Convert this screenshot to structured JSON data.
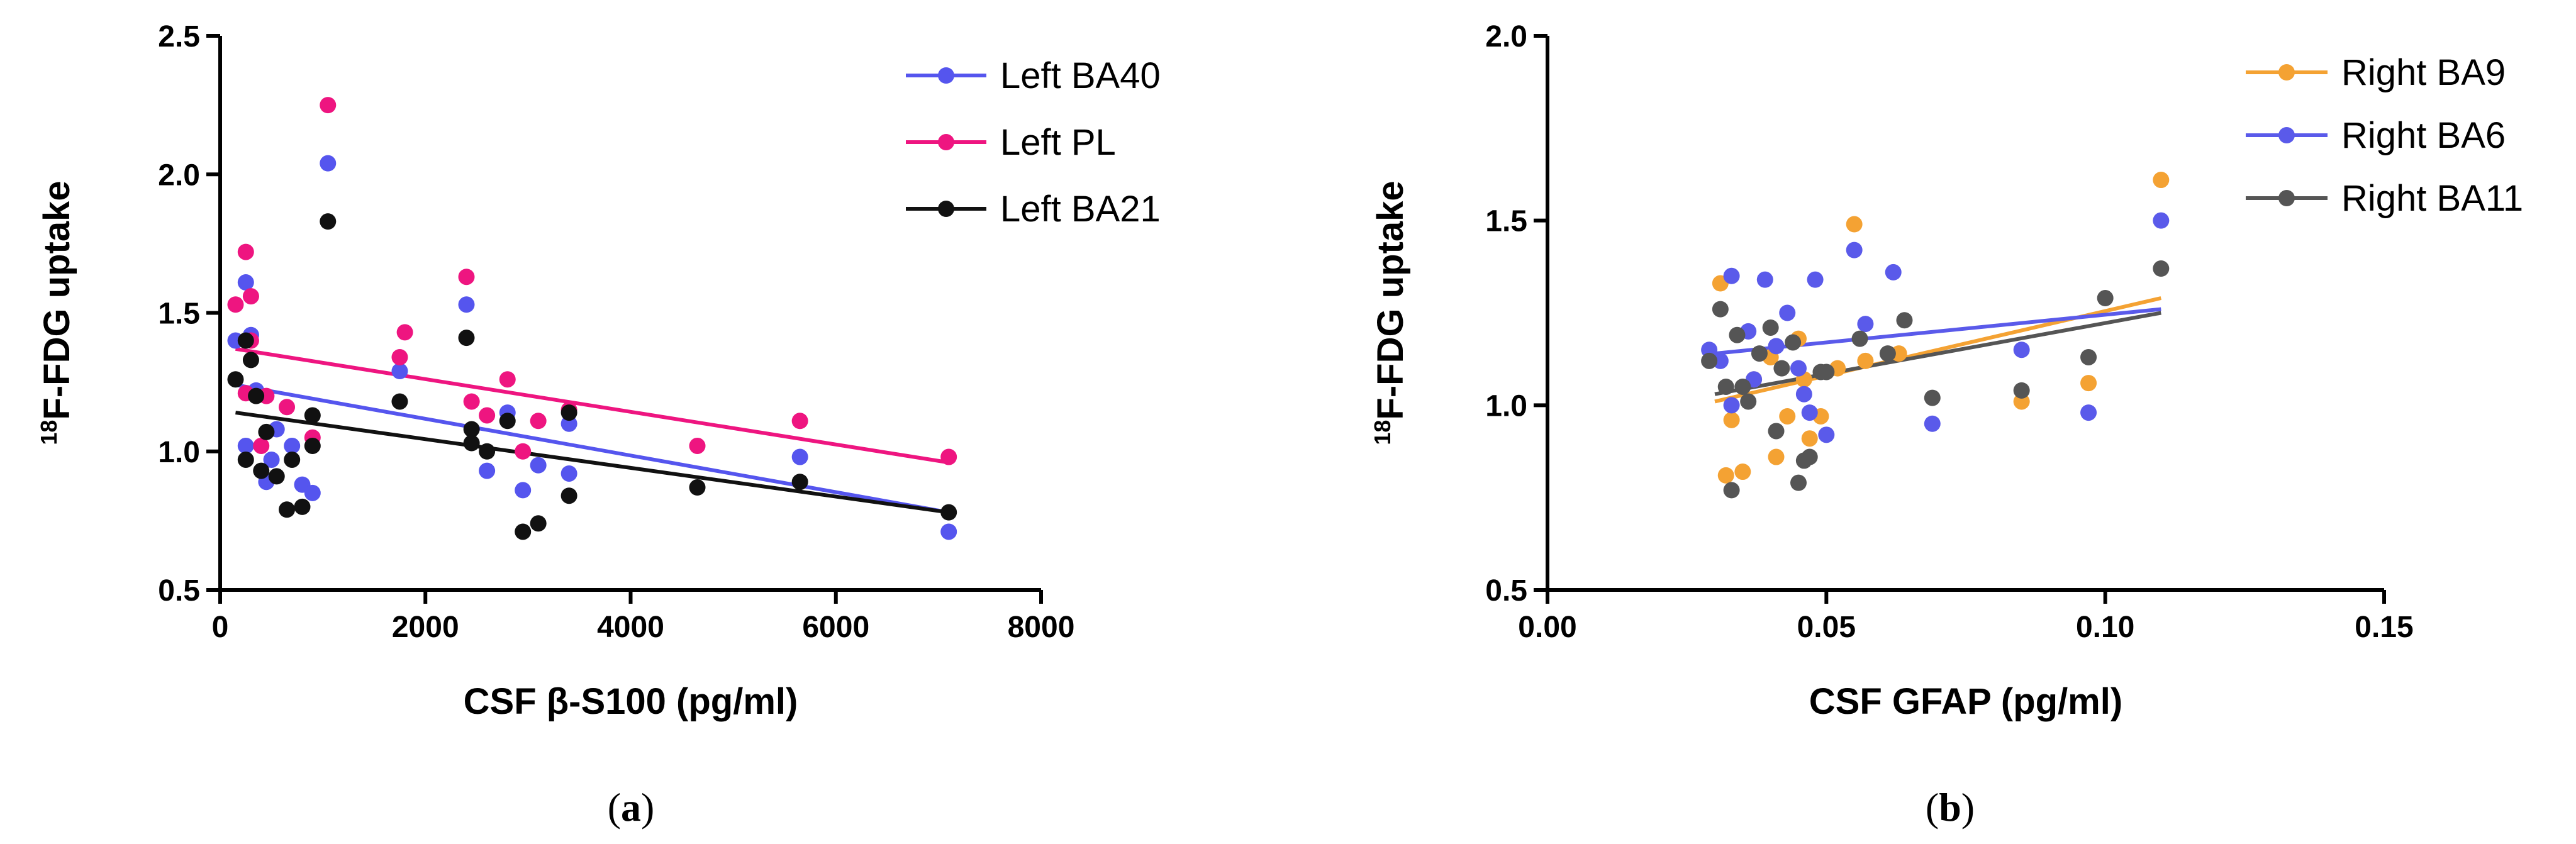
{
  "colors": {
    "left_ba40": "#5555ee",
    "left_pl": "#ee1580",
    "left_ba21": "#111111",
    "right_ba9": "#f4a233",
    "right_ba6": "#5a5aea",
    "right_ba11": "#555555"
  },
  "chart_data": [
    {
      "type": "scatter",
      "panel_label": "a",
      "ylabel_sup": "18",
      "ylabel_main": "F-FDG uptake",
      "xlabel": "CSF β-S100 (pg/ml)",
      "xlim": [
        0,
        8000
      ],
      "ylim": [
        0.5,
        2.5
      ],
      "xticks": [
        0,
        2000,
        4000,
        6000,
        8000
      ],
      "xtick_labels": [
        "0",
        "2000",
        "4000",
        "6000",
        "8000"
      ],
      "yticks": [
        0.5,
        1.0,
        1.5,
        2.0,
        2.5
      ],
      "ytick_labels": [
        "0.5",
        "1.0",
        "1.5",
        "2.0",
        "2.5"
      ],
      "legend_position": "top-right",
      "series": [
        {
          "name": "Left BA40",
          "color_key": "left_ba40",
          "fit": [
            [
              150,
              1.24
            ],
            [
              7100,
              0.78
            ]
          ],
          "points": [
            [
              150,
              1.4
            ],
            [
              250,
              1.61
            ],
            [
              300,
              1.42
            ],
            [
              250,
              1.02
            ],
            [
              350,
              1.22
            ],
            [
              450,
              0.89
            ],
            [
              500,
              0.97
            ],
            [
              550,
              1.08
            ],
            [
              700,
              1.02
            ],
            [
              800,
              0.88
            ],
            [
              900,
              0.85
            ],
            [
              1050,
              2.04
            ],
            [
              1750,
              1.29
            ],
            [
              2400,
              1.53
            ],
            [
              2600,
              0.93
            ],
            [
              2800,
              1.14
            ],
            [
              2950,
              0.86
            ],
            [
              3100,
              0.95
            ],
            [
              3400,
              0.92
            ],
            [
              3400,
              1.1
            ],
            [
              5650,
              0.98
            ],
            [
              7100,
              0.71
            ]
          ]
        },
        {
          "name": "Left PL",
          "color_key": "left_pl",
          "fit": [
            [
              150,
              1.37
            ],
            [
              7100,
              0.96
            ]
          ],
          "points": [
            [
              150,
              1.53
            ],
            [
              250,
              1.72
            ],
            [
              300,
              1.56
            ],
            [
              250,
              1.21
            ],
            [
              300,
              1.4
            ],
            [
              450,
              1.2
            ],
            [
              400,
              1.02
            ],
            [
              650,
              1.16
            ],
            [
              900,
              1.05
            ],
            [
              1050,
              2.25
            ],
            [
              1800,
              1.43
            ],
            [
              1750,
              1.34
            ],
            [
              2400,
              1.63
            ],
            [
              2450,
              1.18
            ],
            [
              2600,
              1.13
            ],
            [
              2800,
              1.26
            ],
            [
              2950,
              1.0
            ],
            [
              3100,
              1.11
            ],
            [
              3400,
              1.15
            ],
            [
              4650,
              1.02
            ],
            [
              5650,
              1.11
            ],
            [
              7100,
              0.98
            ]
          ]
        },
        {
          "name": "Left BA21",
          "color_key": "left_ba21",
          "fit": [
            [
              150,
              1.14
            ],
            [
              7100,
              0.78
            ]
          ],
          "points": [
            [
              150,
              1.26
            ],
            [
              250,
              1.4
            ],
            [
              300,
              1.33
            ],
            [
              350,
              1.2
            ],
            [
              250,
              0.97
            ],
            [
              400,
              0.93
            ],
            [
              450,
              1.07
            ],
            [
              550,
              0.91
            ],
            [
              650,
              0.79
            ],
            [
              700,
              0.97
            ],
            [
              800,
              0.8
            ],
            [
              900,
              1.13
            ],
            [
              900,
              1.02
            ],
            [
              1050,
              1.83
            ],
            [
              1750,
              1.18
            ],
            [
              2400,
              1.41
            ],
            [
              2450,
              1.08
            ],
            [
              2450,
              1.03
            ],
            [
              2600,
              1.0
            ],
            [
              2800,
              1.11
            ],
            [
              2950,
              0.71
            ],
            [
              3100,
              0.74
            ],
            [
              3400,
              0.84
            ],
            [
              3400,
              1.14
            ],
            [
              4650,
              0.87
            ],
            [
              5650,
              0.89
            ],
            [
              7100,
              0.78
            ]
          ]
        }
      ]
    },
    {
      "type": "scatter",
      "panel_label": "b",
      "ylabel_sup": "18",
      "ylabel_main": "F-FDG uptake",
      "xlabel": "CSF GFAP (pg/ml)",
      "xlim": [
        0,
        0.15
      ],
      "ylim": [
        0.5,
        2.0
      ],
      "xticks": [
        0,
        0.05,
        0.1,
        0.15
      ],
      "xtick_labels": [
        "0.00",
        "0.05",
        "0.10",
        "0.15"
      ],
      "yticks": [
        0.5,
        1.0,
        1.5,
        2.0
      ],
      "ytick_labels": [
        "0.5",
        "1.0",
        "1.5",
        "2.0"
      ],
      "legend_position": "top-right",
      "series": [
        {
          "name": "Right BA9",
          "color_key": "right_ba9",
          "fit": [
            [
              0.03,
              1.01
            ],
            [
              0.11,
              1.29
            ]
          ],
          "points": [
            [
              0.031,
              1.33
            ],
            [
              0.032,
              0.81
            ],
            [
              0.033,
              0.96
            ],
            [
              0.035,
              0.82
            ],
            [
              0.037,
              1.07
            ],
            [
              0.04,
              1.13
            ],
            [
              0.041,
              0.86
            ],
            [
              0.043,
              0.97
            ],
            [
              0.045,
              1.18
            ],
            [
              0.046,
              1.07
            ],
            [
              0.047,
              0.91
            ],
            [
              0.049,
              0.97
            ],
            [
              0.052,
              1.1
            ],
            [
              0.055,
              1.49
            ],
            [
              0.057,
              1.12
            ],
            [
              0.063,
              1.14
            ],
            [
              0.085,
              1.01
            ],
            [
              0.097,
              1.06
            ],
            [
              0.11,
              1.61
            ]
          ]
        },
        {
          "name": "Right BA6",
          "color_key": "right_ba6",
          "fit": [
            [
              0.03,
              1.14
            ],
            [
              0.11,
              1.26
            ]
          ],
          "points": [
            [
              0.029,
              1.15
            ],
            [
              0.031,
              1.12
            ],
            [
              0.033,
              1.35
            ],
            [
              0.033,
              1.0
            ],
            [
              0.036,
              1.2
            ],
            [
              0.037,
              1.07
            ],
            [
              0.039,
              1.34
            ],
            [
              0.041,
              1.16
            ],
            [
              0.043,
              1.25
            ],
            [
              0.045,
              1.1
            ],
            [
              0.046,
              1.03
            ],
            [
              0.047,
              0.98
            ],
            [
              0.048,
              1.34
            ],
            [
              0.05,
              0.92
            ],
            [
              0.055,
              1.42
            ],
            [
              0.057,
              1.22
            ],
            [
              0.062,
              1.36
            ],
            [
              0.069,
              0.95
            ],
            [
              0.085,
              1.15
            ],
            [
              0.097,
              0.98
            ],
            [
              0.11,
              1.5
            ]
          ]
        },
        {
          "name": "Right BA11",
          "color_key": "right_ba11",
          "fit": [
            [
              0.03,
              1.03
            ],
            [
              0.11,
              1.25
            ]
          ],
          "points": [
            [
              0.029,
              1.12
            ],
            [
              0.031,
              1.26
            ],
            [
              0.032,
              1.05
            ],
            [
              0.033,
              0.77
            ],
            [
              0.034,
              1.19
            ],
            [
              0.035,
              1.05
            ],
            [
              0.036,
              1.01
            ],
            [
              0.038,
              1.14
            ],
            [
              0.04,
              1.21
            ],
            [
              0.041,
              0.93
            ],
            [
              0.042,
              1.1
            ],
            [
              0.044,
              1.17
            ],
            [
              0.045,
              0.79
            ],
            [
              0.046,
              0.85
            ],
            [
              0.047,
              0.86
            ],
            [
              0.049,
              1.09
            ],
            [
              0.05,
              1.09
            ],
            [
              0.056,
              1.18
            ],
            [
              0.061,
              1.14
            ],
            [
              0.064,
              1.23
            ],
            [
              0.069,
              1.02
            ],
            [
              0.085,
              1.04
            ],
            [
              0.097,
              1.13
            ],
            [
              0.1,
              1.29
            ],
            [
              0.11,
              1.37
            ]
          ]
        }
      ]
    }
  ]
}
